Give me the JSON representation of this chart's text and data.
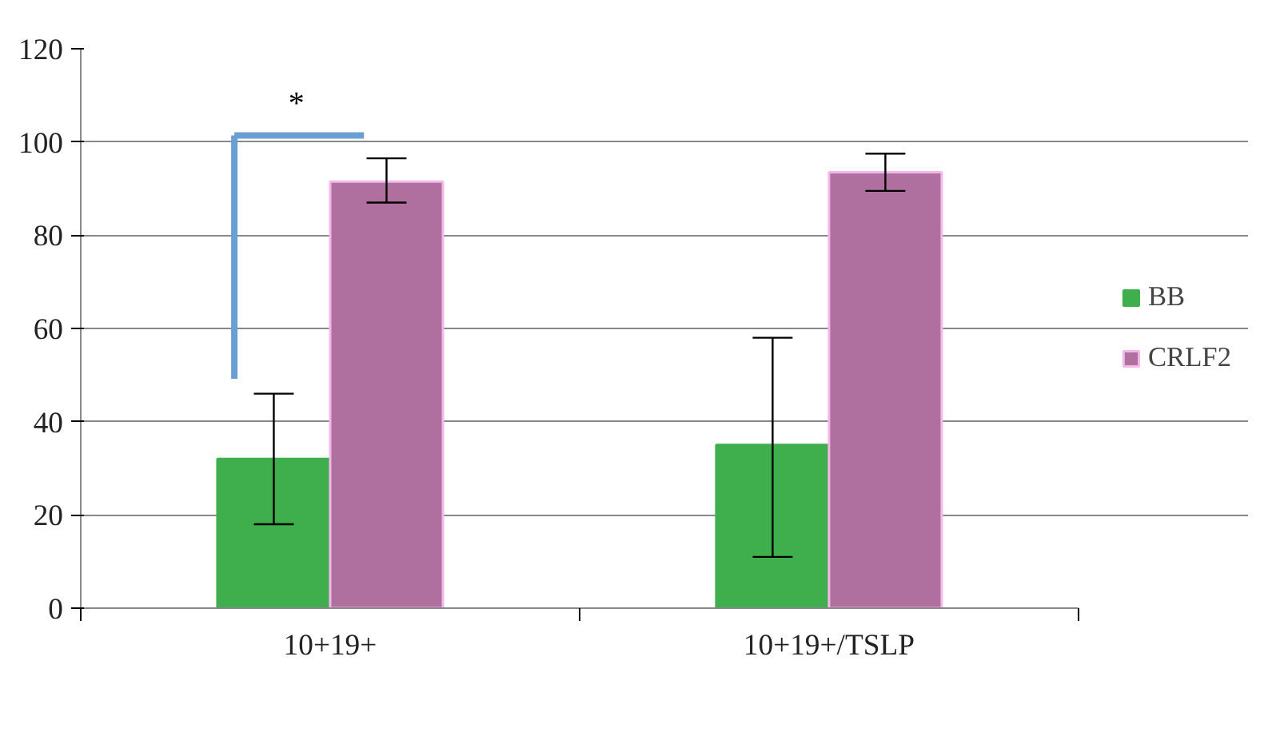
{
  "chart_data": {
    "type": "bar",
    "categories": [
      "10+19+",
      "10+19+/TSLP"
    ],
    "series": [
      {
        "name": "BB",
        "color": "#3fae4c",
        "values": [
          32,
          35
        ],
        "errors": [
          [
            18,
            46
          ],
          [
            11,
            58
          ]
        ]
      },
      {
        "name": "CRLF2",
        "color": "#b0709f",
        "values": [
          91.5,
          93.5
        ],
        "errors": [
          [
            87,
            96.5
          ],
          [
            89.5,
            97.5
          ]
        ]
      }
    ],
    "ylim": [
      0,
      120
    ],
    "yticks": [
      0,
      20,
      40,
      60,
      80,
      100,
      120
    ],
    "grid": "y",
    "legend": "right",
    "annotations": [
      "*"
    ]
  }
}
